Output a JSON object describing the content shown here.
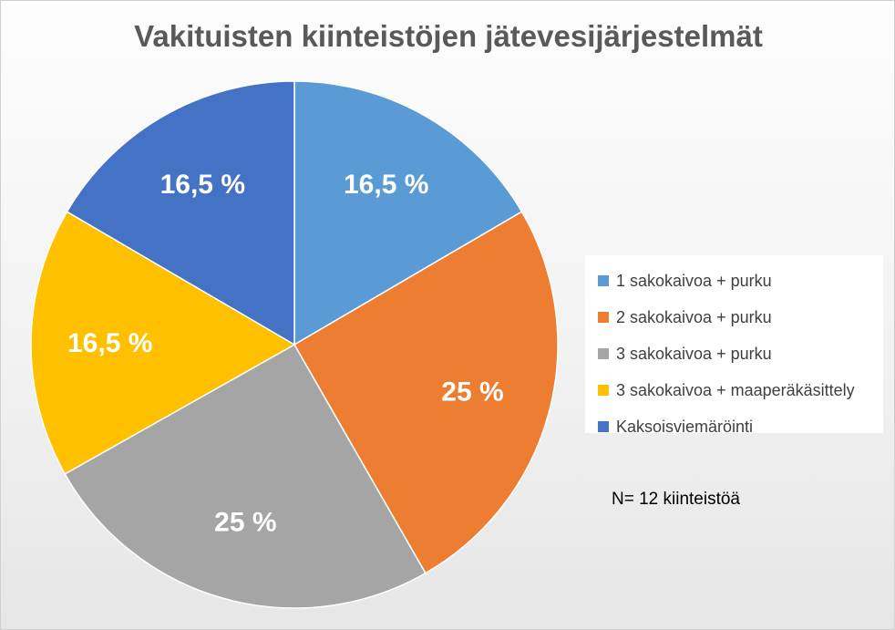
{
  "chart_data": {
    "type": "pie",
    "title": "Vakituisten kiinteistöjen jätevesijärjestelmät",
    "categories": [
      "1 sakokaivoa + purku",
      "2 sakokaivoa + purku",
      "3 sakokaivoa + purku",
      "3 sakokaivoa + maaperäkäsittely",
      "Kaksoisviemäröinti"
    ],
    "values": [
      16.5,
      25,
      25,
      16.5,
      16.5
    ],
    "data_labels": [
      "16,5 %",
      "25 %",
      "25 %",
      "16,5 %",
      "16,5 %"
    ],
    "colors": [
      "#5b9bd5",
      "#ed7d31",
      "#a5a5a5",
      "#ffc000",
      "#4472c4"
    ],
    "legend_placement": "right",
    "annotation": "N= 12 kiinteistöä"
  }
}
